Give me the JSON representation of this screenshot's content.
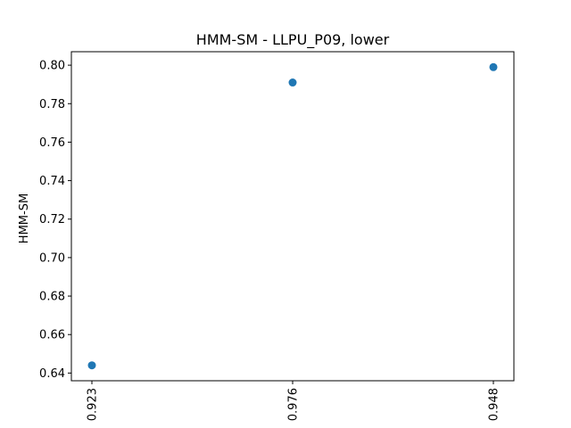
{
  "chart_data": {
    "type": "scatter",
    "title": "HMM-SM - LLPU_P09, lower",
    "xlabel": "",
    "ylabel": "HMM-SM",
    "categories": [
      "0.923",
      "0.976",
      "0.948"
    ],
    "series": [
      {
        "values": [
          0.644,
          0.791,
          0.799
        ]
      }
    ],
    "ylim": [
      0.636,
      0.807
    ],
    "yticks": [
      0.64,
      0.66,
      0.68,
      0.7,
      0.72,
      0.74,
      0.76,
      0.78,
      0.8
    ],
    "ytick_labels": [
      "0.64",
      "0.66",
      "0.68",
      "0.70",
      "0.72",
      "0.74",
      "0.76",
      "0.78",
      "0.80"
    ],
    "grid": false,
    "legend": "none",
    "colors": {
      "marker": "#1f77b4",
      "axes": "#000000",
      "background": "#ffffff"
    }
  }
}
